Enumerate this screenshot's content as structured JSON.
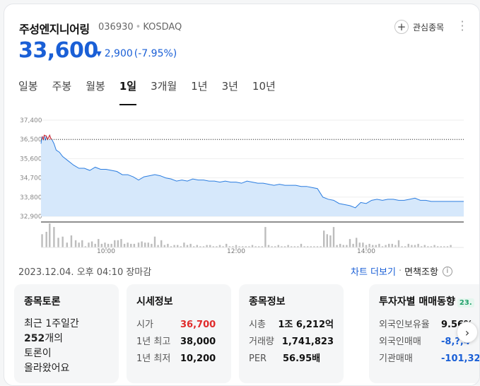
{
  "stock": {
    "name": "주성엔지니어링",
    "code": "036930",
    "market": "KOSDAQ",
    "watch_label": "관심종목",
    "price": "33,600",
    "change_amount": "2,900",
    "change_pct": "(-7.95%)",
    "change_color": "#1a5fd6"
  },
  "tabs": [
    "일봉",
    "주봉",
    "월봉",
    "1일",
    "3개월",
    "1년",
    "3년",
    "10년"
  ],
  "active_tab": "1일",
  "chart_data": {
    "type": "line",
    "y_ticks": [
      "37,400",
      "36,500",
      "35,600",
      "34,700",
      "33,800",
      "32,900"
    ],
    "x_ticks": [
      "10:00",
      "12:00",
      "14:00"
    ],
    "ylim": [
      32900,
      37400
    ],
    "prev_close": 36500,
    "x_range_minutes": [
      540,
      930
    ],
    "price_series": [
      [
        540,
        36300
      ],
      [
        541,
        36650
      ],
      [
        542,
        36500
      ],
      [
        543,
        36700
      ],
      [
        544,
        36450
      ],
      [
        545,
        36650
      ],
      [
        546,
        36500
      ],
      [
        547,
        36600
      ],
      [
        548,
        36700
      ],
      [
        549,
        36550
      ],
      [
        550,
        36500
      ],
      [
        552,
        36300
      ],
      [
        554,
        36000
      ],
      [
        557,
        35900
      ],
      [
        560,
        35700
      ],
      [
        565,
        35500
      ],
      [
        570,
        35300
      ],
      [
        575,
        35150
      ],
      [
        580,
        35150
      ],
      [
        585,
        35050
      ],
      [
        590,
        35200
      ],
      [
        595,
        35100
      ],
      [
        600,
        35100
      ],
      [
        605,
        35050
      ],
      [
        610,
        35000
      ],
      [
        615,
        34850
      ],
      [
        620,
        34850
      ],
      [
        625,
        34750
      ],
      [
        630,
        34600
      ],
      [
        635,
        34750
      ],
      [
        640,
        34800
      ],
      [
        645,
        34850
      ],
      [
        650,
        34800
      ],
      [
        655,
        34700
      ],
      [
        660,
        34650
      ],
      [
        665,
        34550
      ],
      [
        670,
        34600
      ],
      [
        675,
        34550
      ],
      [
        680,
        34650
      ],
      [
        685,
        34600
      ],
      [
        690,
        34600
      ],
      [
        695,
        34550
      ],
      [
        700,
        34550
      ],
      [
        705,
        34500
      ],
      [
        710,
        34550
      ],
      [
        715,
        34500
      ],
      [
        720,
        34500
      ],
      [
        725,
        34450
      ],
      [
        730,
        34550
      ],
      [
        735,
        34500
      ],
      [
        740,
        34450
      ],
      [
        745,
        34450
      ],
      [
        750,
        34400
      ],
      [
        755,
        34350
      ],
      [
        760,
        34400
      ],
      [
        765,
        34350
      ],
      [
        770,
        34350
      ],
      [
        775,
        34350
      ],
      [
        780,
        34300
      ],
      [
        785,
        34300
      ],
      [
        790,
        34250
      ],
      [
        795,
        34200
      ],
      [
        800,
        33800
      ],
      [
        805,
        33700
      ],
      [
        810,
        33650
      ],
      [
        815,
        33500
      ],
      [
        820,
        33450
      ],
      [
        825,
        33400
      ],
      [
        830,
        33300
      ],
      [
        835,
        33550
      ],
      [
        840,
        33500
      ],
      [
        845,
        33650
      ],
      [
        850,
        33700
      ],
      [
        855,
        33650
      ],
      [
        860,
        33700
      ],
      [
        865,
        33700
      ],
      [
        870,
        33650
      ],
      [
        875,
        33650
      ],
      [
        880,
        33700
      ],
      [
        885,
        33750
      ],
      [
        890,
        33650
      ],
      [
        895,
        33650
      ],
      [
        900,
        33600
      ],
      [
        905,
        33600
      ],
      [
        910,
        33600
      ],
      [
        915,
        33600
      ],
      [
        920,
        33600
      ],
      [
        925,
        33600
      ],
      [
        930,
        33600
      ]
    ],
    "volume_series": [
      [
        541,
        55
      ],
      [
        545,
        65
      ],
      [
        548,
        100
      ],
      [
        552,
        85
      ],
      [
        556,
        40
      ],
      [
        560,
        45
      ],
      [
        564,
        20
      ],
      [
        568,
        50
      ],
      [
        572,
        30
      ],
      [
        575,
        20
      ],
      [
        578,
        30
      ],
      [
        581,
        5
      ],
      [
        584,
        20
      ],
      [
        587,
        25
      ],
      [
        590,
        15
      ],
      [
        593,
        35
      ],
      [
        596,
        15
      ],
      [
        599,
        20
      ],
      [
        602,
        15
      ],
      [
        605,
        15
      ],
      [
        608,
        30
      ],
      [
        611,
        30
      ],
      [
        614,
        35
      ],
      [
        617,
        15
      ],
      [
        620,
        20
      ],
      [
        623,
        15
      ],
      [
        626,
        15
      ],
      [
        630,
        20
      ],
      [
        633,
        25
      ],
      [
        636,
        20
      ],
      [
        639,
        20
      ],
      [
        642,
        15
      ],
      [
        645,
        45
      ],
      [
        648,
        10
      ],
      [
        651,
        30
      ],
      [
        654,
        10
      ],
      [
        657,
        15
      ],
      [
        660,
        5
      ],
      [
        663,
        10
      ],
      [
        666,
        10
      ],
      [
        669,
        5
      ],
      [
        672,
        20
      ],
      [
        675,
        10
      ],
      [
        678,
        15
      ],
      [
        681,
        5
      ],
      [
        684,
        10
      ],
      [
        687,
        5
      ],
      [
        690,
        5
      ],
      [
        693,
        10
      ],
      [
        696,
        10
      ],
      [
        699,
        5
      ],
      [
        702,
        5
      ],
      [
        705,
        10
      ],
      [
        708,
        5
      ],
      [
        711,
        15
      ],
      [
        714,
        5
      ],
      [
        717,
        5
      ],
      [
        720,
        10
      ],
      [
        723,
        5
      ],
      [
        726,
        5
      ],
      [
        729,
        5
      ],
      [
        732,
        5
      ],
      [
        735,
        10
      ],
      [
        738,
        5
      ],
      [
        741,
        5
      ],
      [
        744,
        5
      ],
      [
        747,
        85
      ],
      [
        750,
        10
      ],
      [
        753,
        5
      ],
      [
        756,
        5
      ],
      [
        759,
        10
      ],
      [
        762,
        5
      ],
      [
        765,
        5
      ],
      [
        768,
        10
      ],
      [
        771,
        5
      ],
      [
        774,
        5
      ],
      [
        777,
        5
      ],
      [
        780,
        15
      ],
      [
        783,
        5
      ],
      [
        786,
        5
      ],
      [
        789,
        5
      ],
      [
        792,
        5
      ],
      [
        795,
        5
      ],
      [
        798,
        5
      ],
      [
        801,
        70
      ],
      [
        804,
        55
      ],
      [
        807,
        50
      ],
      [
        810,
        85
      ],
      [
        813,
        10
      ],
      [
        816,
        15
      ],
      [
        819,
        10
      ],
      [
        822,
        10
      ],
      [
        825,
        35
      ],
      [
        828,
        15
      ],
      [
        831,
        40
      ],
      [
        834,
        20
      ],
      [
        837,
        20
      ],
      [
        840,
        10
      ],
      [
        843,
        15
      ],
      [
        846,
        10
      ],
      [
        849,
        10
      ],
      [
        852,
        15
      ],
      [
        855,
        5
      ],
      [
        858,
        10
      ],
      [
        861,
        15
      ],
      [
        864,
        15
      ],
      [
        867,
        10
      ],
      [
        870,
        30
      ],
      [
        873,
        5
      ],
      [
        876,
        5
      ],
      [
        879,
        15
      ],
      [
        882,
        10
      ],
      [
        885,
        10
      ],
      [
        888,
        15
      ],
      [
        891,
        5
      ],
      [
        894,
        10
      ],
      [
        897,
        5
      ],
      [
        900,
        5
      ],
      [
        903,
        10
      ],
      [
        906,
        5
      ],
      [
        909,
        5
      ],
      [
        912,
        5
      ],
      [
        915,
        5
      ],
      [
        918,
        10
      ]
    ],
    "up_color": "#e02b2b",
    "down_color": "#2b7de0"
  },
  "footer": {
    "timestamp": "2023.12.04. 오후 04:10 장마감",
    "chart_link": "차트 더보기",
    "sep": "·",
    "notice": "면책조항"
  },
  "panels": {
    "discussion": {
      "title": "종목토론",
      "line1": "최근 1주일간",
      "count": "252",
      "count_suffix": "개의",
      "line3": "토론이",
      "line4": "올라왔어요"
    },
    "quote": {
      "title": "시세정보",
      "rows": [
        {
          "label": "시가",
          "value": "36,700"
        },
        {
          "label": "1년 최고",
          "value": "38,000"
        },
        {
          "label": "1년 최저",
          "value": "10,200"
        }
      ]
    },
    "info": {
      "title": "종목정보",
      "rows": [
        {
          "label": "시총",
          "value": "1조 6,212억"
        },
        {
          "label": "거래량",
          "value": "1,741,823"
        },
        {
          "label": "PER",
          "value": "56.95배"
        }
      ]
    },
    "investor": {
      "title": "투자자별 매매동향",
      "badge": "23.",
      "rows": [
        {
          "label": "외국인보유율",
          "value": "9.56%"
        },
        {
          "label": "외국인매매",
          "value": "-8,?,4"
        },
        {
          "label": "기관매매",
          "value": "-101,32"
        }
      ]
    }
  }
}
